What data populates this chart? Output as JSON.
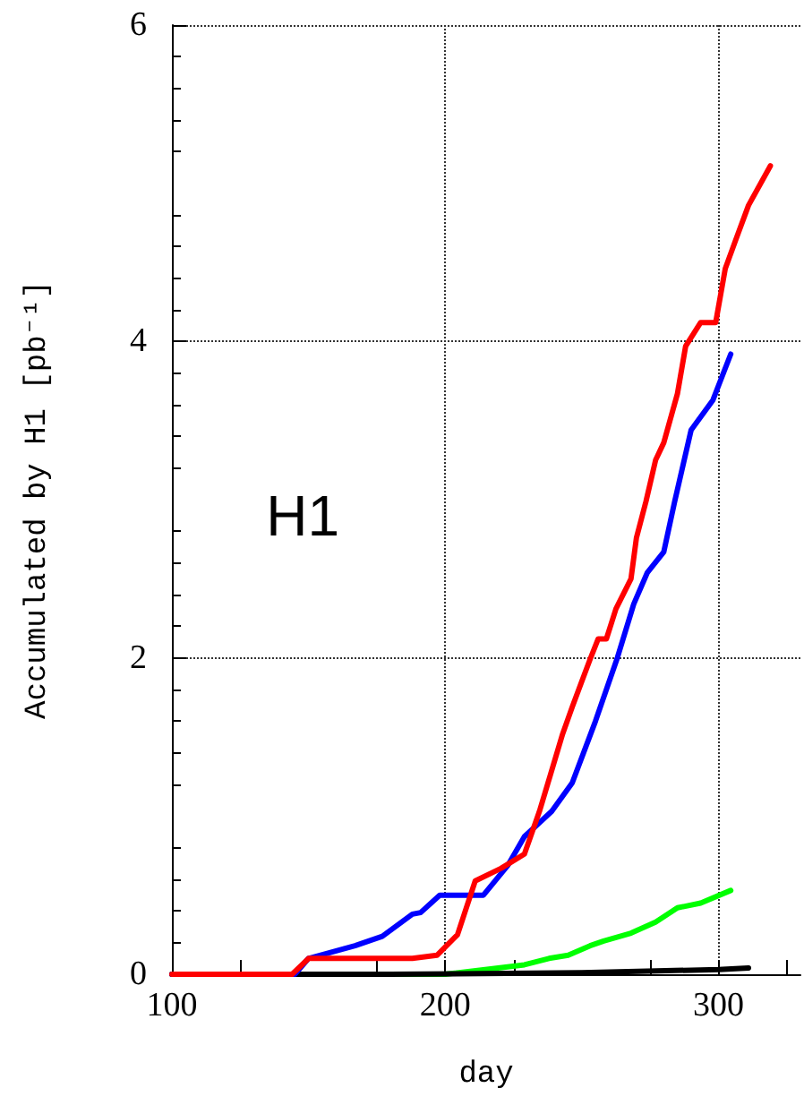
{
  "chart_data": {
    "type": "line",
    "xlabel": "day",
    "ylabel": "Accumulated by H1 [pb⁻¹]",
    "annotations": [
      "H1"
    ],
    "xlim": [
      100,
      330
    ],
    "xticks": [
      100,
      200,
      300
    ],
    "ylim": [
      0,
      6
    ],
    "yticks": [
      0,
      2,
      4,
      6
    ],
    "grid": true,
    "marker": "none",
    "line_style": "solid",
    "series": [
      {
        "color": "#00ff00",
        "x": [
          100,
          200,
          229,
          238,
          245,
          253,
          258,
          268,
          277,
          285,
          293.5,
          304.5
        ],
        "values": [
          0,
          0,
          0.06,
          0.1,
          0.12,
          0.18,
          0.21,
          0.26,
          0.33,
          0.42,
          0.45,
          0.53
        ]
      },
      {
        "color": "#000000",
        "x": [
          100,
          180,
          250,
          300,
          311
        ],
        "values": [
          0,
          0,
          0.01,
          0.03,
          0.04
        ]
      },
      {
        "color": "#0000ff",
        "x": [
          100,
          145,
          150,
          167,
          177,
          188,
          191,
          198,
          214,
          223,
          229,
          239,
          246.5,
          255,
          263,
          269,
          274,
          280,
          284,
          290,
          298,
          304.5
        ],
        "values": [
          0,
          0,
          0.1,
          0.18,
          0.24,
          0.38,
          0.39,
          0.5,
          0.5,
          0.69,
          0.87,
          1.03,
          1.21,
          1.6,
          2.0,
          2.34,
          2.54,
          2.67,
          2.99,
          3.44,
          3.63,
          3.92
        ]
      },
      {
        "color": "#ff0000",
        "x": [
          100,
          144,
          150,
          188,
          197,
          204.5,
          211,
          220.5,
          229,
          234.5,
          238.5,
          243,
          246.5,
          253,
          256,
          259,
          262.5,
          268,
          270,
          273.5,
          277,
          280,
          285,
          288,
          293.5,
          299,
          302.5,
          306.5,
          311,
          319
        ],
        "values": [
          0,
          0,
          0.1,
          0.1,
          0.12,
          0.25,
          0.59,
          0.67,
          0.76,
          1.03,
          1.26,
          1.52,
          1.69,
          1.99,
          2.12,
          2.12,
          2.31,
          2.5,
          2.76,
          2.99,
          3.25,
          3.36,
          3.67,
          3.97,
          4.12,
          4.12,
          4.46,
          4.65,
          4.86,
          5.11
        ]
      }
    ]
  }
}
